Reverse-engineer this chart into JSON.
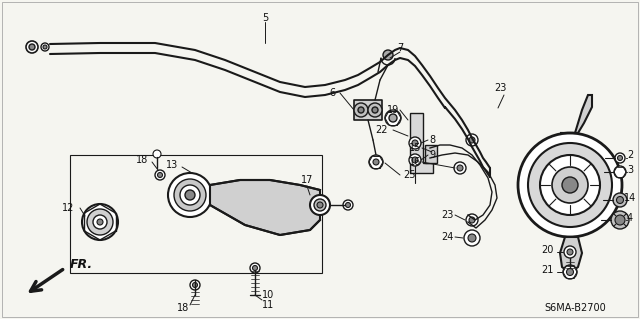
{
  "diagram_code": "S6MA-B2700",
  "bg_color": "#f5f5f0",
  "line_color": "#1a1a1a",
  "text_color": "#111111",
  "figsize": [
    6.4,
    3.19
  ],
  "dpi": 100
}
